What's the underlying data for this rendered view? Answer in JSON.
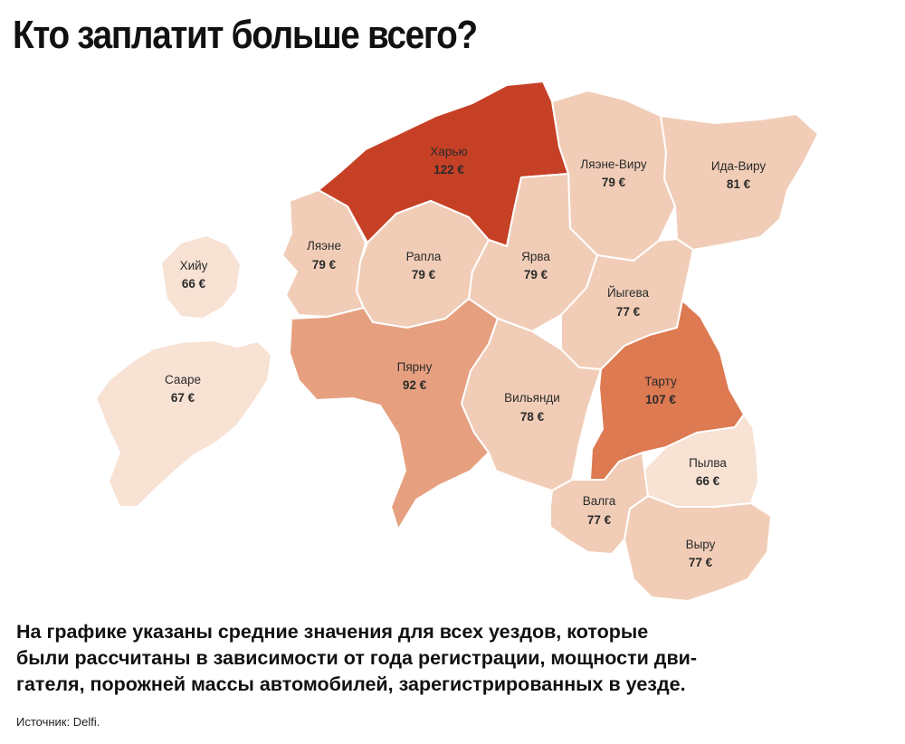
{
  "title": "Кто заплатит больше всего?",
  "caption_lines": [
    "На графике указаны средние значения для всех уездов, которые",
    "были рассчитаны в зависимости от года регистрации, мощности дви-",
    "гателя, порожней массы автомобилей, зарегистрированных в уезде."
  ],
  "source": "Источник: Delfi.",
  "colors": {
    "highest": "#c64026",
    "high": "#dd7a52",
    "medium": "#e6a07f",
    "low": "#f1cdb7",
    "lowest": "#f7e2d4"
  },
  "regions": [
    {
      "id": "harju",
      "name": "Харью",
      "value": "122 €",
      "color": "#c64026"
    },
    {
      "id": "laane-viru",
      "name": "Ляэне-Виру",
      "value": "79 €",
      "color": "#f1cdb7"
    },
    {
      "id": "ida-viru",
      "name": "Ида-Виру",
      "value": "81 €",
      "color": "#f1cdb7"
    },
    {
      "id": "laane",
      "name": "Ляэне",
      "value": "79 €",
      "color": "#f1cdb7"
    },
    {
      "id": "rapla",
      "name": "Рапла",
      "value": "79 €",
      "color": "#f1cdb7"
    },
    {
      "id": "jarva",
      "name": "Ярва",
      "value": "79 €",
      "color": "#f1cdb7"
    },
    {
      "id": "hiiu",
      "name": "Хийу",
      "value": "66 €",
      "color": "#f7e2d4"
    },
    {
      "id": "jogeva",
      "name": "Йыгева",
      "value": "77 €",
      "color": "#f1cdb7"
    },
    {
      "id": "saare",
      "name": "Сааре",
      "value": "67 €",
      "color": "#f7e2d4"
    },
    {
      "id": "parnu",
      "name": "Пярну",
      "value": "92 €",
      "color": "#e6a07f"
    },
    {
      "id": "viljandi",
      "name": "Вильянди",
      "value": "78 €",
      "color": "#f1cdb7"
    },
    {
      "id": "tartu",
      "name": "Тарту",
      "value": "107 €",
      "color": "#dd7a52"
    },
    {
      "id": "polva",
      "name": "Пылва",
      "value": "66 €",
      "color": "#f7e2d4"
    },
    {
      "id": "valga",
      "name": "Валга",
      "value": "77 €",
      "color": "#f1cdb7"
    },
    {
      "id": "voru",
      "name": "Выру",
      "value": "77 €",
      "color": "#f1cdb7"
    }
  ]
}
